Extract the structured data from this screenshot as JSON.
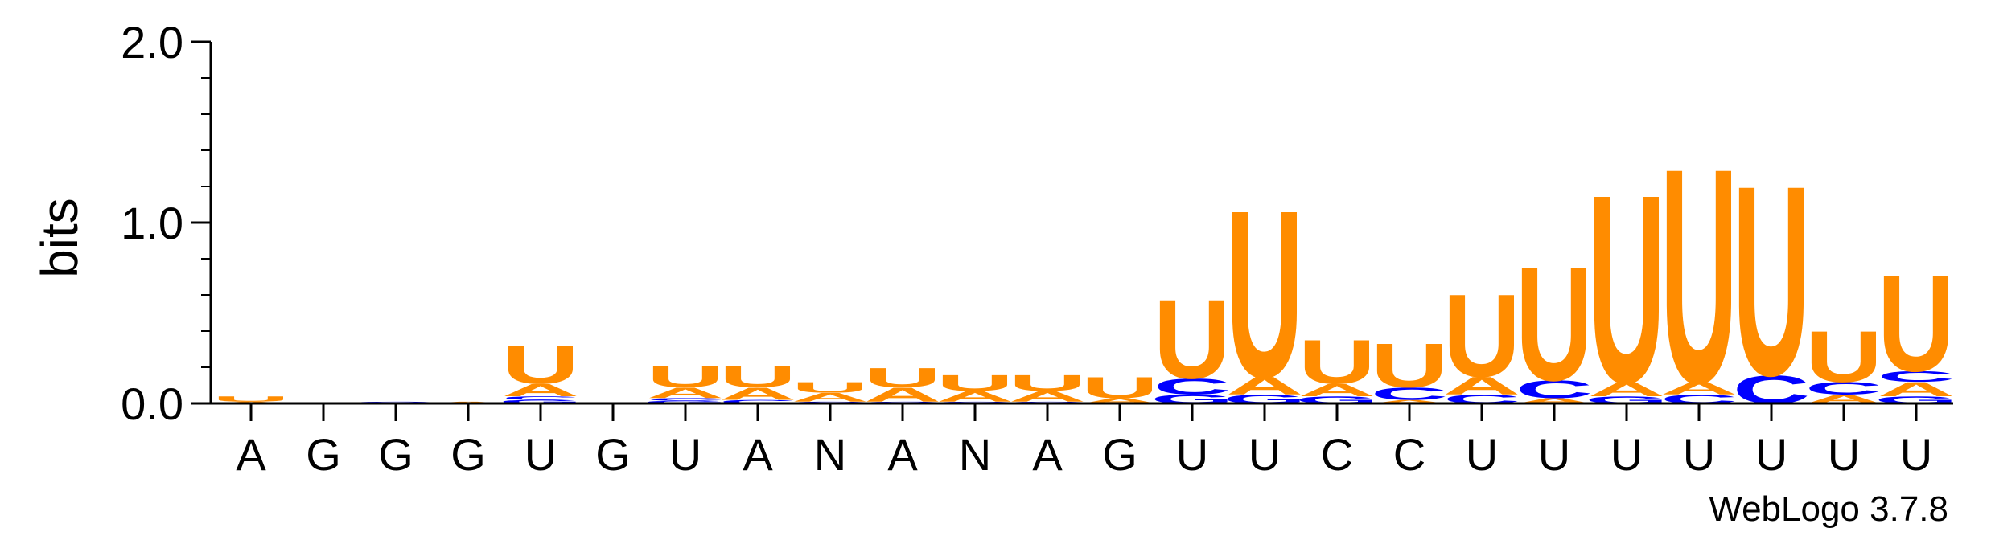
{
  "chart_data": {
    "type": "sequence-logo",
    "ylabel": "bits",
    "ylim": [
      0,
      2.0
    ],
    "y_ticks": [
      {
        "value": 0.0,
        "label": "0.0"
      },
      {
        "value": 1.0,
        "label": "1.0"
      },
      {
        "value": 2.0,
        "label": "2.0"
      }
    ],
    "x_tick_labels": [
      "A",
      "G",
      "G",
      "G",
      "U",
      "G",
      "U",
      "A",
      "N",
      "A",
      "N",
      "A",
      "G",
      "U",
      "U",
      "C",
      "C",
      "U",
      "U",
      "U",
      "U",
      "U",
      "U",
      "U"
    ],
    "colors": {
      "U": "#ff8c00",
      "A": "#ff8c00",
      "C": "#0000ff",
      "G": "#0000ff"
    },
    "positions": [
      {
        "letters": [
          {
            "base": "A",
            "bits": 0.01
          },
          {
            "base": "U",
            "bits": 0.03
          }
        ]
      },
      {
        "letters": [
          {
            "base": "G",
            "bits": 0.005
          }
        ]
      },
      {
        "letters": [
          {
            "base": "G",
            "bits": 0.01
          }
        ]
      },
      {
        "letters": [
          {
            "base": "A",
            "bits": 0.01
          }
        ]
      },
      {
        "letters": [
          {
            "base": "G",
            "bits": 0.02
          },
          {
            "base": "C",
            "bits": 0.02
          },
          {
            "base": "A",
            "bits": 0.07
          },
          {
            "base": "U",
            "bits": 0.22
          }
        ]
      },
      {
        "letters": []
      },
      {
        "letters": [
          {
            "base": "G",
            "bits": 0.015
          },
          {
            "base": "C",
            "bits": 0.015
          },
          {
            "base": "A",
            "bits": 0.06
          },
          {
            "base": "U",
            "bits": 0.12
          }
        ]
      },
      {
        "letters": [
          {
            "base": "C",
            "bits": 0.02
          },
          {
            "base": "A",
            "bits": 0.07
          },
          {
            "base": "U",
            "bits": 0.12
          }
        ]
      },
      {
        "letters": [
          {
            "base": "C",
            "bits": 0.01
          },
          {
            "base": "A",
            "bits": 0.05
          },
          {
            "base": "U",
            "bits": 0.06
          }
        ]
      },
      {
        "letters": [
          {
            "base": "C",
            "bits": 0.01
          },
          {
            "base": "A",
            "bits": 0.08
          },
          {
            "base": "U",
            "bits": 0.11
          }
        ]
      },
      {
        "letters": [
          {
            "base": "C",
            "bits": 0.01
          },
          {
            "base": "A",
            "bits": 0.06
          },
          {
            "base": "U",
            "bits": 0.09
          }
        ]
      },
      {
        "letters": [
          {
            "base": "C",
            "bits": 0.01
          },
          {
            "base": "A",
            "bits": 0.06
          },
          {
            "base": "U",
            "bits": 0.09
          }
        ]
      },
      {
        "letters": [
          {
            "base": "A",
            "bits": 0.03
          },
          {
            "base": "U",
            "bits": 0.12
          }
        ]
      },
      {
        "letters": [
          {
            "base": "G",
            "bits": 0.05
          },
          {
            "base": "C",
            "bits": 0.09
          },
          {
            "base": "U",
            "bits": 0.45
          }
        ]
      },
      {
        "letters": [
          {
            "base": "G",
            "bits": 0.05
          },
          {
            "base": "A",
            "bits": 0.1
          },
          {
            "base": "U",
            "bits": 0.95
          }
        ]
      },
      {
        "letters": [
          {
            "base": "G",
            "bits": 0.04
          },
          {
            "base": "A",
            "bits": 0.07
          },
          {
            "base": "U",
            "bits": 0.25
          }
        ]
      },
      {
        "letters": [
          {
            "base": "A",
            "bits": 0.02
          },
          {
            "base": "C",
            "bits": 0.07
          },
          {
            "base": "U",
            "bits": 0.25
          }
        ]
      },
      {
        "letters": [
          {
            "base": "C",
            "bits": 0.05
          },
          {
            "base": "A",
            "bits": 0.1
          },
          {
            "base": "U",
            "bits": 0.47
          }
        ]
      },
      {
        "letters": [
          {
            "base": "A",
            "bits": 0.03
          },
          {
            "base": "C",
            "bits": 0.1
          },
          {
            "base": "U",
            "bits": 0.65
          }
        ]
      },
      {
        "letters": [
          {
            "base": "G",
            "bits": 0.04
          },
          {
            "base": "A",
            "bits": 0.08
          },
          {
            "base": "U",
            "bits": 1.07
          }
        ]
      },
      {
        "letters": [
          {
            "base": "C",
            "bits": 0.05
          },
          {
            "base": "A",
            "bits": 0.07
          },
          {
            "base": "U",
            "bits": 1.22
          }
        ]
      },
      {
        "letters": [
          {
            "base": "C",
            "bits": 0.16
          },
          {
            "base": "U",
            "bits": 1.08
          }
        ]
      },
      {
        "letters": [
          {
            "base": "A",
            "bits": 0.05
          },
          {
            "base": "C",
            "bits": 0.07
          },
          {
            "base": "U",
            "bits": 0.29
          }
        ]
      },
      {
        "letters": [
          {
            "base": "G",
            "bits": 0.04
          },
          {
            "base": "A",
            "bits": 0.08
          },
          {
            "base": "C",
            "bits": 0.06
          },
          {
            "base": "U",
            "bits": 0.55
          }
        ]
      }
    ]
  },
  "footer": {
    "credit": "WebLogo 3.7.8"
  }
}
